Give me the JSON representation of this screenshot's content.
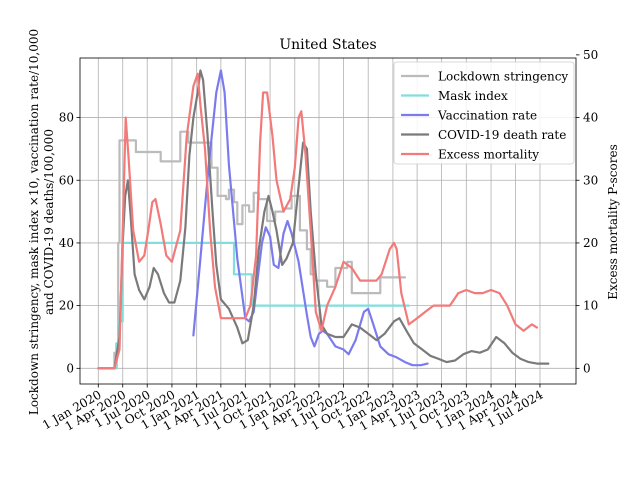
{
  "chart_data": {
    "type": "line",
    "title": "United States",
    "ylabel_left": [
      "Lockdown stringency, mask index ×10, vaccination rate/10,000",
      "and COVID-19 deaths/100,000"
    ],
    "ylabel_right": "Excess mortality P-scores",
    "x_ticks": [
      "1 Jan 2020",
      "1 Apr 2020",
      "1 Jul 2020",
      "1 Oct 2020",
      "1 Jan 2021",
      "1 Apr 2021",
      "1 Jul 2021",
      "1 Oct 2021",
      "1 Jan 2022",
      "1 Apr 2022",
      "1 Jul 2022",
      "1 Oct 2022",
      "1 Jan 2023",
      "1 Apr 2023",
      "1 Jul 2023",
      "1 Oct 2023",
      "1 Jan 2024",
      "1 Apr 2024",
      "1 Jul 2024"
    ],
    "y_left_ticks": [
      0,
      20,
      40,
      60,
      80
    ],
    "y_right_ticks": [
      0,
      10,
      20,
      30,
      40,
      50
    ],
    "ylim_left": [
      -5,
      99
    ],
    "ylim_right": [
      -2.5,
      49.5
    ],
    "grid": true,
    "legend_position": "upper-right",
    "series": [
      {
        "name": "Lockdown stringency",
        "color": "#bbbbbb",
        "axis": "left",
        "step": true,
        "points": [
          [
            "2020-01-01",
            0
          ],
          [
            "2020-02-15",
            0
          ],
          [
            "2020-03-01",
            5
          ],
          [
            "2020-03-08",
            8
          ],
          [
            "2020-03-15",
            40
          ],
          [
            "2020-03-20",
            72.7
          ],
          [
            "2020-05-15",
            72.7
          ],
          [
            "2020-05-20",
            69
          ],
          [
            "2020-08-15",
            69
          ],
          [
            "2020-08-20",
            66
          ],
          [
            "2020-10-25",
            66
          ],
          [
            "2020-11-01",
            75.5
          ],
          [
            "2020-11-20",
            75.5
          ],
          [
            "2020-12-01",
            72
          ],
          [
            "2021-02-15",
            72
          ],
          [
            "2021-02-25",
            64
          ],
          [
            "2021-03-10",
            64
          ],
          [
            "2021-03-20",
            55
          ],
          [
            "2021-04-20",
            54
          ],
          [
            "2021-05-01",
            57
          ],
          [
            "2021-05-20",
            53
          ],
          [
            "2021-06-01",
            46
          ],
          [
            "2021-06-20",
            52
          ],
          [
            "2021-07-15",
            50
          ],
          [
            "2021-08-01",
            56
          ],
          [
            "2021-08-20",
            54
          ],
          [
            "2021-09-20",
            47
          ],
          [
            "2021-10-20",
            50
          ],
          [
            "2021-11-20",
            51
          ],
          [
            "2021-12-20",
            55
          ],
          [
            "2022-01-20",
            44
          ],
          [
            "2022-02-15",
            38
          ],
          [
            "2022-03-01",
            30
          ],
          [
            "2022-03-20",
            28
          ],
          [
            "2022-05-01",
            26
          ],
          [
            "2022-06-01",
            32
          ],
          [
            "2022-07-01",
            32
          ],
          [
            "2022-07-15",
            34
          ],
          [
            "2022-08-01",
            24
          ],
          [
            "2022-11-01",
            24
          ],
          [
            "2022-11-15",
            29
          ],
          [
            "2023-02-01",
            29
          ],
          [
            "2023-02-15",
            29
          ]
        ]
      },
      {
        "name": "Mask index",
        "color": "#7fdfdf",
        "axis": "left",
        "step": true,
        "points": [
          [
            "2020-01-01",
            0
          ],
          [
            "2020-03-01",
            0
          ],
          [
            "2020-03-10",
            8
          ],
          [
            "2020-03-20",
            15
          ],
          [
            "2020-04-01",
            40
          ],
          [
            "2021-05-15",
            40
          ],
          [
            "2021-05-20",
            30
          ],
          [
            "2021-07-20",
            30
          ],
          [
            "2021-07-25",
            20
          ],
          [
            "2023-03-01",
            20
          ]
        ]
      },
      {
        "name": "Vaccination rate",
        "color": "#7b7bf0",
        "axis": "left",
        "step": false,
        "points": [
          [
            "2020-12-20",
            10.5
          ],
          [
            "2021-01-15",
            35
          ],
          [
            "2021-02-15",
            65
          ],
          [
            "2021-03-15",
            88
          ],
          [
            "2021-04-01",
            95
          ],
          [
            "2021-04-15",
            88
          ],
          [
            "2021-05-01",
            65
          ],
          [
            "2021-06-01",
            35
          ],
          [
            "2021-07-01",
            16
          ],
          [
            "2021-07-15",
            15
          ],
          [
            "2021-08-01",
            18
          ],
          [
            "2021-08-15",
            28
          ],
          [
            "2021-09-01",
            40
          ],
          [
            "2021-09-15",
            45
          ],
          [
            "2021-10-01",
            42
          ],
          [
            "2021-10-15",
            33
          ],
          [
            "2021-11-01",
            32
          ],
          [
            "2021-11-20",
            43
          ],
          [
            "2021-12-05",
            47
          ],
          [
            "2021-12-20",
            43
          ],
          [
            "2022-01-15",
            34
          ],
          [
            "2022-02-15",
            17
          ],
          [
            "2022-03-01",
            10
          ],
          [
            "2022-03-15",
            7
          ],
          [
            "2022-04-01",
            11
          ],
          [
            "2022-04-15",
            12
          ],
          [
            "2022-05-01",
            11
          ],
          [
            "2022-06-01",
            7
          ],
          [
            "2022-07-01",
            6
          ],
          [
            "2022-07-20",
            4.5
          ],
          [
            "2022-08-15",
            9
          ],
          [
            "2022-09-15",
            18
          ],
          [
            "2022-10-01",
            19
          ],
          [
            "2022-10-20",
            14
          ],
          [
            "2022-11-15",
            7
          ],
          [
            "2022-12-15",
            4.5
          ],
          [
            "2023-01-15",
            3.5
          ],
          [
            "2023-02-15",
            2
          ],
          [
            "2023-03-15",
            1
          ],
          [
            "2023-04-15",
            1
          ],
          [
            "2023-05-10",
            1.5
          ]
        ]
      },
      {
        "name": "COVID-19 death rate",
        "color": "#7a7a7a",
        "axis": "left",
        "step": false,
        "points": [
          [
            "2020-01-01",
            0
          ],
          [
            "2020-03-01",
            0
          ],
          [
            "2020-03-20",
            10
          ],
          [
            "2020-04-01",
            40
          ],
          [
            "2020-04-10",
            55
          ],
          [
            "2020-04-20",
            60
          ],
          [
            "2020-05-01",
            48
          ],
          [
            "2020-05-15",
            30
          ],
          [
            "2020-06-01",
            25
          ],
          [
            "2020-06-20",
            22
          ],
          [
            "2020-07-10",
            26
          ],
          [
            "2020-07-25",
            32
          ],
          [
            "2020-08-10",
            30
          ],
          [
            "2020-09-01",
            24
          ],
          [
            "2020-09-20",
            21
          ],
          [
            "2020-10-10",
            21
          ],
          [
            "2020-11-01",
            28
          ],
          [
            "2020-11-20",
            45
          ],
          [
            "2020-12-05",
            68
          ],
          [
            "2020-12-20",
            80
          ],
          [
            "2021-01-05",
            88
          ],
          [
            "2021-01-15",
            95
          ],
          [
            "2021-01-25",
            92
          ],
          [
            "2021-02-10",
            75
          ],
          [
            "2021-03-01",
            50
          ],
          [
            "2021-03-15",
            33
          ],
          [
            "2021-04-01",
            22
          ],
          [
            "2021-05-01",
            19
          ],
          [
            "2021-06-01",
            13
          ],
          [
            "2021-06-20",
            8
          ],
          [
            "2021-07-10",
            9
          ],
          [
            "2021-08-01",
            20
          ],
          [
            "2021-08-20",
            38
          ],
          [
            "2021-09-10",
            50
          ],
          [
            "2021-09-25",
            55
          ],
          [
            "2021-10-10",
            50
          ],
          [
            "2021-10-25",
            44
          ],
          [
            "2021-11-15",
            33
          ],
          [
            "2021-12-01",
            35
          ],
          [
            "2021-12-25",
            40
          ],
          [
            "2022-01-15",
            58
          ],
          [
            "2022-02-01",
            72
          ],
          [
            "2022-02-15",
            70
          ],
          [
            "2022-03-01",
            50
          ],
          [
            "2022-03-20",
            30
          ],
          [
            "2022-04-10",
            14
          ],
          [
            "2022-05-01",
            11
          ],
          [
            "2022-06-01",
            10
          ],
          [
            "2022-07-01",
            10
          ],
          [
            "2022-08-01",
            14
          ],
          [
            "2022-09-01",
            13
          ],
          [
            "2022-10-01",
            11
          ],
          [
            "2022-11-01",
            9
          ],
          [
            "2022-12-01",
            11
          ],
          [
            "2023-01-05",
            15
          ],
          [
            "2023-01-25",
            16
          ],
          [
            "2023-02-20",
            12
          ],
          [
            "2023-03-20",
            8
          ],
          [
            "2023-04-20",
            6
          ],
          [
            "2023-05-20",
            4
          ],
          [
            "2023-06-20",
            3
          ],
          [
            "2023-07-20",
            2
          ],
          [
            "2023-08-20",
            2.5
          ],
          [
            "2023-09-20",
            4.5
          ],
          [
            "2023-10-20",
            5.5
          ],
          [
            "2023-11-20",
            5
          ],
          [
            "2023-12-20",
            6
          ],
          [
            "2024-01-20",
            10
          ],
          [
            "2024-02-20",
            8
          ],
          [
            "2024-03-20",
            5
          ],
          [
            "2024-04-20",
            3
          ],
          [
            "2024-05-20",
            2
          ],
          [
            "2024-06-20",
            1.5
          ],
          [
            "2024-08-01",
            1.5
          ]
        ]
      },
      {
        "name": "Excess mortality",
        "color": "#f27a7a",
        "axis": "right",
        "step": false,
        "points": [
          [
            "2020-01-01",
            0
          ],
          [
            "2020-03-01",
            0
          ],
          [
            "2020-03-20",
            3
          ],
          [
            "2020-04-01",
            22
          ],
          [
            "2020-04-12",
            40
          ],
          [
            "2020-04-22",
            34
          ],
          [
            "2020-05-10",
            22
          ],
          [
            "2020-06-01",
            17
          ],
          [
            "2020-06-20",
            18
          ],
          [
            "2020-07-05",
            22
          ],
          [
            "2020-07-20",
            26.5
          ],
          [
            "2020-08-01",
            27
          ],
          [
            "2020-08-20",
            23
          ],
          [
            "2020-09-10",
            18
          ],
          [
            "2020-10-01",
            17
          ],
          [
            "2020-11-01",
            22
          ],
          [
            "2020-11-25",
            37
          ],
          [
            "2020-12-20",
            45
          ],
          [
            "2021-01-05",
            47
          ],
          [
            "2021-01-15",
            42
          ],
          [
            "2021-02-01",
            35
          ],
          [
            "2021-02-20",
            22
          ],
          [
            "2021-03-10",
            13
          ],
          [
            "2021-04-01",
            8
          ],
          [
            "2021-05-01",
            8
          ],
          [
            "2021-06-01",
            8
          ],
          [
            "2021-07-01",
            8
          ],
          [
            "2021-07-20",
            10
          ],
          [
            "2021-08-10",
            18
          ],
          [
            "2021-08-25",
            36
          ],
          [
            "2021-09-05",
            44
          ],
          [
            "2021-09-20",
            44
          ],
          [
            "2021-10-10",
            37
          ],
          [
            "2021-10-25",
            30
          ],
          [
            "2021-11-20",
            25
          ],
          [
            "2021-12-15",
            27
          ],
          [
            "2022-01-01",
            32
          ],
          [
            "2022-01-15",
            40
          ],
          [
            "2022-01-25",
            41
          ],
          [
            "2022-02-10",
            34
          ],
          [
            "2022-03-01",
            22
          ],
          [
            "2022-03-20",
            9
          ],
          [
            "2022-04-10",
            6
          ],
          [
            "2022-05-01",
            10
          ],
          [
            "2022-06-01",
            13
          ],
          [
            "2022-07-01",
            17
          ],
          [
            "2022-08-01",
            16
          ],
          [
            "2022-09-01",
            14
          ],
          [
            "2022-10-01",
            14
          ],
          [
            "2022-11-01",
            14
          ],
          [
            "2022-11-20",
            15
          ],
          [
            "2022-12-20",
            19
          ],
          [
            "2023-01-05",
            20
          ],
          [
            "2023-01-15",
            19
          ],
          [
            "2023-02-01",
            12
          ],
          [
            "2023-03-01",
            7
          ],
          [
            "2023-04-01",
            8
          ],
          [
            "2023-05-01",
            9
          ],
          [
            "2023-06-01",
            10
          ],
          [
            "2023-07-01",
            10
          ],
          [
            "2023-08-01",
            10
          ],
          [
            "2023-09-01",
            12
          ],
          [
            "2023-10-01",
            12.5
          ],
          [
            "2023-11-01",
            12
          ],
          [
            "2023-12-01",
            12
          ],
          [
            "2024-01-01",
            12.5
          ],
          [
            "2024-02-01",
            12
          ],
          [
            "2024-03-01",
            10
          ],
          [
            "2024-04-01",
            7
          ],
          [
            "2024-05-01",
            6
          ],
          [
            "2024-06-01",
            7
          ],
          [
            "2024-06-20",
            6.5
          ]
        ]
      }
    ]
  }
}
